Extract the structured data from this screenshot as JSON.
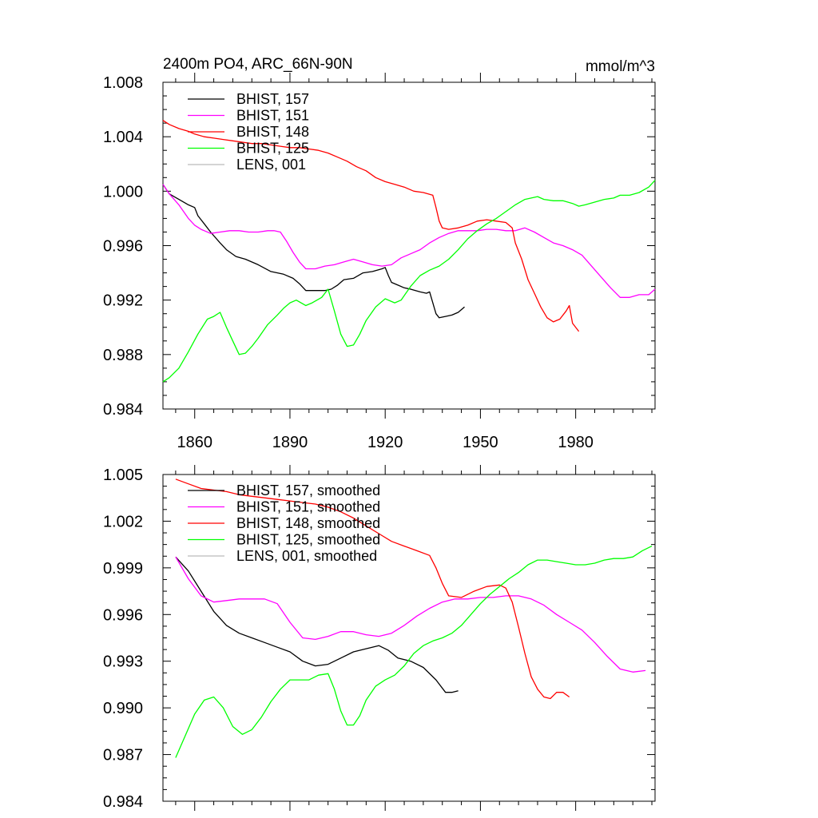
{
  "chart_data": [
    {
      "type": "line",
      "title": "2400m PO4, ARC_66N-90N",
      "units": "mmol/m^3",
      "xlabel": "",
      "ylabel": "",
      "xlim": [
        1850,
        2005
      ],
      "ylim": [
        0.984,
        1.008
      ],
      "xticks": [
        1860,
        1890,
        1920,
        1950,
        1980
      ],
      "yticks": [
        "0.984",
        "0.988",
        "0.992",
        "0.996",
        "1.000",
        "1.004",
        "1.008"
      ],
      "legend_position": "top-left",
      "series": [
        {
          "name": "BHIST, 157",
          "color": "#000000",
          "x": [
            1850,
            1852,
            1855,
            1858,
            1860,
            1861,
            1863,
            1865,
            1868,
            1870,
            1873,
            1876,
            1880,
            1884,
            1888,
            1891,
            1893,
            1895,
            1897,
            1899,
            1901,
            1903,
            1905,
            1907,
            1910,
            1913,
            1916,
            1919,
            1920,
            1921,
            1922,
            1924,
            1926,
            1928,
            1931,
            1933,
            1934,
            1935,
            1936,
            1937,
            1939,
            1941,
            1943,
            1945
          ],
          "y": [
            1.0005,
            0.9998,
            0.9994,
            0.999,
            0.9988,
            0.9982,
            0.9976,
            0.997,
            0.9962,
            0.9957,
            0.9952,
            0.995,
            0.9946,
            0.9941,
            0.9939,
            0.9936,
            0.9932,
            0.9927,
            0.9927,
            0.9927,
            0.9927,
            0.9928,
            0.9931,
            0.9935,
            0.9936,
            0.994,
            0.9941,
            0.9943,
            0.9944,
            0.9938,
            0.9933,
            0.9931,
            0.9929,
            0.9928,
            0.9926,
            0.9925,
            0.9926,
            0.9918,
            0.991,
            0.9907,
            0.9908,
            0.9909,
            0.9911,
            0.9915
          ]
        },
        {
          "name": "BHIST, 151",
          "color": "#ff00ff",
          "x": [
            1850,
            1852,
            1855,
            1858,
            1860,
            1862,
            1865,
            1868,
            1871,
            1874,
            1877,
            1880,
            1883,
            1885,
            1887,
            1889,
            1891,
            1893,
            1895,
            1898,
            1901,
            1904,
            1907,
            1910,
            1913,
            1916,
            1919,
            1922,
            1925,
            1928,
            1931,
            1934,
            1937,
            1940,
            1943,
            1946,
            1949,
            1952,
            1955,
            1958,
            1961,
            1964,
            1967,
            1970,
            1973,
            1976,
            1979,
            1982,
            1985,
            1988,
            1991,
            1994,
            1997,
            2000,
            2003,
            2005
          ],
          "y": [
            1.0005,
            0.9998,
            0.999,
            0.998,
            0.9975,
            0.9972,
            0.9969,
            0.997,
            0.9971,
            0.9971,
            0.997,
            0.997,
            0.9971,
            0.9971,
            0.997,
            0.9963,
            0.9955,
            0.9948,
            0.9943,
            0.9943,
            0.9945,
            0.9946,
            0.9948,
            0.995,
            0.9948,
            0.9946,
            0.9945,
            0.9946,
            0.9951,
            0.9954,
            0.9957,
            0.9962,
            0.9966,
            0.9969,
            0.9971,
            0.9971,
            0.9971,
            0.9972,
            0.9972,
            0.9971,
            0.9971,
            0.9973,
            0.997,
            0.9966,
            0.9962,
            0.996,
            0.9957,
            0.9953,
            0.9945,
            0.9937,
            0.9929,
            0.9922,
            0.9922,
            0.9924,
            0.9924,
            0.9928
          ]
        },
        {
          "name": "BHIST, 148",
          "color": "#ff0000",
          "x": [
            1850,
            1852,
            1855,
            1858,
            1860,
            1863,
            1866,
            1869,
            1872,
            1875,
            1878,
            1881,
            1884,
            1887,
            1890,
            1893,
            1896,
            1899,
            1902,
            1905,
            1908,
            1911,
            1914,
            1917,
            1920,
            1923,
            1926,
            1929,
            1932,
            1935,
            1936,
            1937,
            1938,
            1940,
            1943,
            1946,
            1949,
            1952,
            1955,
            1958,
            1960,
            1961,
            1963,
            1965,
            1967,
            1969,
            1971,
            1973,
            1975,
            1977,
            1978,
            1979,
            1981
          ],
          "y": [
            1.0052,
            1.0049,
            1.0046,
            1.0044,
            1.0042,
            1.004,
            1.0039,
            1.0038,
            1.0037,
            1.0036,
            1.0035,
            1.0035,
            1.0034,
            1.0033,
            1.0032,
            1.0032,
            1.0031,
            1.003,
            1.0028,
            1.0025,
            1.0022,
            1.0018,
            1.0015,
            1.001,
            1.0007,
            1.0005,
            1.0003,
            1.0,
            0.9999,
            0.9997,
            0.9988,
            0.9978,
            0.9973,
            0.9972,
            0.9973,
            0.9975,
            0.9978,
            0.9979,
            0.9978,
            0.9977,
            0.9973,
            0.9962,
            0.995,
            0.9935,
            0.9925,
            0.9915,
            0.9907,
            0.9904,
            0.9906,
            0.9912,
            0.9916,
            0.9903,
            0.9897
          ]
        },
        {
          "name": "BHIST, 125",
          "color": "#00ff00",
          "x": [
            1850,
            1852,
            1855,
            1858,
            1861,
            1864,
            1866,
            1868,
            1870,
            1872,
            1874,
            1876,
            1878,
            1880,
            1883,
            1886,
            1888,
            1890,
            1892,
            1895,
            1897,
            1900,
            1902,
            1904,
            1906,
            1908,
            1910,
            1912,
            1914,
            1917,
            1920,
            1923,
            1925,
            1928,
            1931,
            1934,
            1937,
            1940,
            1943,
            1946,
            1949,
            1952,
            1955,
            1958,
            1961,
            1964,
            1966,
            1968,
            1970,
            1973,
            1976,
            1979,
            1981,
            1983,
            1986,
            1989,
            1992,
            1994,
            1997,
            2000,
            2003,
            2005
          ],
          "y": [
            0.986,
            0.9863,
            0.987,
            0.9882,
            0.9895,
            0.9906,
            0.9908,
            0.9911,
            0.99,
            0.989,
            0.988,
            0.9881,
            0.9886,
            0.9892,
            0.9902,
            0.9909,
            0.9914,
            0.9918,
            0.992,
            0.9916,
            0.9918,
            0.9922,
            0.9928,
            0.9912,
            0.9895,
            0.9886,
            0.9887,
            0.9895,
            0.9905,
            0.9915,
            0.9921,
            0.9918,
            0.992,
            0.993,
            0.9938,
            0.9942,
            0.9945,
            0.995,
            0.9957,
            0.9965,
            0.9971,
            0.9976,
            0.998,
            0.9985,
            0.999,
            0.9994,
            0.9995,
            0.9996,
            0.9994,
            0.9993,
            0.9993,
            0.9991,
            0.9989,
            0.999,
            0.9992,
            0.9994,
            0.9995,
            0.9997,
            0.9997,
            0.9999,
            1.0003,
            1.0008
          ]
        },
        {
          "name": "LENS, 001",
          "color": "#bbbbbb",
          "x": [],
          "y": []
        }
      ]
    },
    {
      "type": "line",
      "title": "",
      "xlabel": "",
      "ylabel": "",
      "xlim": [
        1850,
        2005
      ],
      "ylim": [
        0.984,
        1.005
      ],
      "xticks": [
        1860,
        1890,
        1920,
        1950,
        1980
      ],
      "yticks": [
        "0.984",
        "0.987",
        "0.990",
        "0.993",
        "0.996",
        "0.999",
        "1.002",
        "1.005"
      ],
      "legend_position": "top-left",
      "series": [
        {
          "name": "BHIST, 157, smoothed",
          "color": "#000000",
          "x": [
            1854,
            1858,
            1862,
            1866,
            1870,
            1874,
            1878,
            1882,
            1886,
            1890,
            1894,
            1898,
            1902,
            1906,
            1910,
            1914,
            1918,
            1921,
            1924,
            1928,
            1932,
            1936,
            1939,
            1941,
            1943
          ],
          "y": [
            0.9997,
            0.9988,
            0.9975,
            0.9962,
            0.9953,
            0.9948,
            0.9945,
            0.9942,
            0.9939,
            0.9936,
            0.993,
            0.9927,
            0.9928,
            0.9932,
            0.9936,
            0.9938,
            0.994,
            0.9937,
            0.9932,
            0.993,
            0.9926,
            0.9918,
            0.991,
            0.991,
            0.9911
          ]
        },
        {
          "name": "BHIST, 151, smoothed",
          "color": "#ff00ff",
          "x": [
            1854,
            1858,
            1862,
            1866,
            1870,
            1874,
            1878,
            1882,
            1886,
            1890,
            1894,
            1898,
            1902,
            1906,
            1910,
            1914,
            1918,
            1922,
            1926,
            1930,
            1934,
            1938,
            1942,
            1946,
            1950,
            1954,
            1958,
            1962,
            1966,
            1970,
            1974,
            1978,
            1982,
            1986,
            1990,
            1994,
            1998,
            2002
          ],
          "y": [
            0.9997,
            0.9983,
            0.9972,
            0.9968,
            0.9969,
            0.997,
            0.997,
            0.997,
            0.9967,
            0.9955,
            0.9945,
            0.9944,
            0.9946,
            0.9949,
            0.9949,
            0.9947,
            0.9946,
            0.9948,
            0.9953,
            0.9959,
            0.9964,
            0.9968,
            0.997,
            0.997,
            0.9971,
            0.9971,
            0.9972,
            0.9972,
            0.997,
            0.9966,
            0.996,
            0.9955,
            0.995,
            0.9942,
            0.9933,
            0.9925,
            0.9923,
            0.9924
          ]
        },
        {
          "name": "BHIST, 148, smoothed",
          "color": "#ff0000",
          "x": [
            1854,
            1858,
            1862,
            1866,
            1870,
            1874,
            1878,
            1882,
            1886,
            1890,
            1894,
            1898,
            1902,
            1906,
            1910,
            1914,
            1918,
            1922,
            1926,
            1930,
            1934,
            1936,
            1938,
            1940,
            1944,
            1948,
            1952,
            1956,
            1958,
            1960,
            1962,
            1964,
            1966,
            1968,
            1970,
            1972,
            1974,
            1976,
            1978
          ],
          "y": [
            1.0047,
            1.0044,
            1.0041,
            1.004,
            1.0039,
            1.0037,
            1.0036,
            1.0035,
            1.0034,
            1.0033,
            1.0032,
            1.0031,
            1.0029,
            1.0026,
            1.0022,
            1.0017,
            1.0012,
            1.0007,
            1.0004,
            1.0001,
            0.9998,
            0.999,
            0.998,
            0.9972,
            0.9971,
            0.9975,
            0.9978,
            0.9979,
            0.9977,
            0.9968,
            0.9952,
            0.9935,
            0.992,
            0.9912,
            0.9907,
            0.9906,
            0.991,
            0.991,
            0.9907
          ]
        },
        {
          "name": "BHIST, 125, smoothed",
          "color": "#00ff00",
          "x": [
            1854,
            1857,
            1860,
            1863,
            1866,
            1869,
            1872,
            1875,
            1878,
            1881,
            1884,
            1887,
            1890,
            1893,
            1896,
            1899,
            1902,
            1904,
            1906,
            1908,
            1910,
            1912,
            1914,
            1917,
            1920,
            1923,
            1926,
            1929,
            1932,
            1935,
            1938,
            1941,
            1944,
            1947,
            1950,
            1953,
            1956,
            1959,
            1962,
            1965,
            1968,
            1971,
            1974,
            1977,
            1980,
            1983,
            1986,
            1989,
            1992,
            1995,
            1998,
            2001,
            2004
          ],
          "y": [
            0.9868,
            0.9882,
            0.9896,
            0.9905,
            0.9907,
            0.99,
            0.9888,
            0.9883,
            0.9886,
            0.9894,
            0.9904,
            0.9912,
            0.9918,
            0.9918,
            0.9918,
            0.9921,
            0.9922,
            0.9912,
            0.9898,
            0.9889,
            0.9889,
            0.9895,
            0.9905,
            0.9914,
            0.9918,
            0.9921,
            0.9927,
            0.9935,
            0.994,
            0.9943,
            0.9945,
            0.9948,
            0.9953,
            0.996,
            0.9967,
            0.9973,
            0.9978,
            0.9983,
            0.9987,
            0.9992,
            0.9995,
            0.9995,
            0.9994,
            0.9993,
            0.9992,
            0.9992,
            0.9993,
            0.9995,
            0.9996,
            0.9996,
            0.9997,
            1.0001,
            1.0004
          ]
        },
        {
          "name": "LENS, 001, smoothed",
          "color": "#bbbbbb",
          "x": [],
          "y": []
        }
      ]
    }
  ]
}
